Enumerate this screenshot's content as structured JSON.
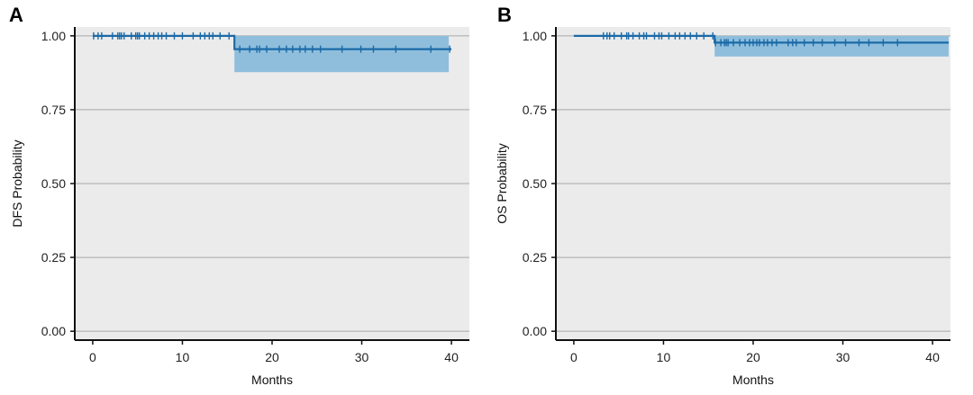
{
  "chart_data": [
    {
      "type": "line",
      "subtype": "kaplan-meier",
      "panel": "A",
      "xlabel": "Months",
      "ylabel": "DFS Probability",
      "xlim": [
        -2,
        42
      ],
      "ylim": [
        -0.03,
        1.03
      ],
      "xticks": [
        0,
        10,
        20,
        30,
        40
      ],
      "yticks": [
        0.0,
        0.25,
        0.5,
        0.75,
        1.0
      ],
      "xtick_labels": [
        "0",
        "10",
        "20",
        "30",
        "40"
      ],
      "ytick_labels": [
        "0.00",
        "0.25",
        "0.50",
        "0.75",
        "1.00"
      ],
      "grid": true,
      "colors": {
        "line": "#1b6aa8",
        "ci": "#8fbedc",
        "background": "#ebebeb"
      },
      "steps": [
        {
          "x": 0,
          "y": 1.0
        },
        {
          "x": 15.8,
          "y": 0.955
        },
        {
          "x": 40,
          "y": 0.955
        }
      ],
      "ci_band": [
        {
          "x0": 15.8,
          "x1": 39.7,
          "lower": 0.877,
          "upper": 1.0
        }
      ],
      "censor_times": [
        0.1,
        0.6,
        1.0,
        2.2,
        2.8,
        3.0,
        3.2,
        3.5,
        4.3,
        4.8,
        5.0,
        5.2,
        5.8,
        6.3,
        6.8,
        7.3,
        7.7,
        8.2,
        9.1,
        10.0,
        11.2,
        12.0,
        12.5,
        13.0,
        13.4,
        14.2,
        15.2,
        16.4,
        17.5,
        18.3,
        18.6,
        19.4,
        20.8,
        21.6,
        22.3,
        23.1,
        23.7,
        24.5,
        25.4,
        27.8,
        29.9,
        31.3,
        33.8,
        37.7,
        39.8
      ]
    },
    {
      "type": "line",
      "subtype": "kaplan-meier",
      "panel": "B",
      "xlabel": "Months",
      "ylabel": "OS Probability",
      "xlim": [
        -2,
        42
      ],
      "ylim": [
        -0.03,
        1.03
      ],
      "xticks": [
        0,
        10,
        20,
        30,
        40
      ],
      "yticks": [
        0.0,
        0.25,
        0.5,
        0.75,
        1.0
      ],
      "xtick_labels": [
        "0",
        "10",
        "20",
        "30",
        "40"
      ],
      "ytick_labels": [
        "0.00",
        "0.25",
        "0.50",
        "0.75",
        "1.00"
      ],
      "grid": true,
      "colors": {
        "line": "#1b6aa8",
        "ci": "#8fbedc",
        "background": "#ebebeb"
      },
      "steps": [
        {
          "x": 0,
          "y": 1.0
        },
        {
          "x": 15.7,
          "y": 0.977
        },
        {
          "x": 41.8,
          "y": 0.977
        }
      ],
      "ci_band": [
        {
          "x0": 15.7,
          "x1": 41.8,
          "lower": 0.93,
          "upper": 1.0
        }
      ],
      "censor_times": [
        3.3,
        3.7,
        4.0,
        4.5,
        5.3,
        5.9,
        6.1,
        6.6,
        7.3,
        7.8,
        8.1,
        9.0,
        9.5,
        9.8,
        10.6,
        11.3,
        11.8,
        12.4,
        13.0,
        13.7,
        14.5,
        15.5,
        15.8,
        16.4,
        16.8,
        17.0,
        17.2,
        17.8,
        18.5,
        19.1,
        19.6,
        20.0,
        20.4,
        20.7,
        21.2,
        21.6,
        22.1,
        22.6,
        23.9,
        24.4,
        24.8,
        25.7,
        26.7,
        27.7,
        29.1,
        30.3,
        31.8,
        32.9,
        34.5,
        36.1
      ]
    }
  ]
}
